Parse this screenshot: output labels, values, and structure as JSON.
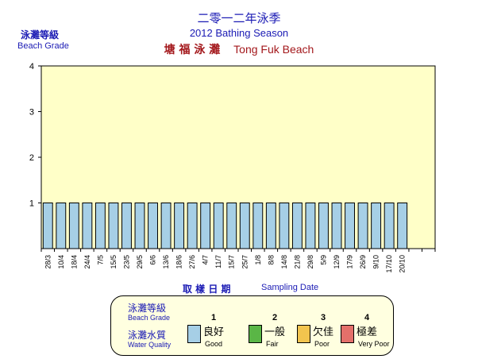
{
  "titles": {
    "chinese_title": "二零一二年泳季",
    "english_title": "2012 Bathing Season",
    "beach_chinese": "塘 福 泳 灘",
    "beach_english": "Tong Fuk Beach"
  },
  "y_axis_title": {
    "chinese": "泳灘等級",
    "english": "Beach Grade"
  },
  "x_axis_title": {
    "chinese": "取 樣 日 期",
    "english": "Sampling Date"
  },
  "legend": {
    "grade_label_chinese": "泳灘等級",
    "grade_label_english": "Beach Grade",
    "quality_label_chinese": "泳灘水質",
    "quality_label_english": "Water Quality",
    "items": [
      {
        "grade": "1",
        "chinese": "良好",
        "english": "Good",
        "color": "#a6cfe6"
      },
      {
        "grade": "2",
        "chinese": "一般",
        "english": "Fair",
        "color": "#5ab646"
      },
      {
        "grade": "3",
        "chinese": "欠佳",
        "english": "Poor",
        "color": "#f2c44e"
      },
      {
        "grade": "4",
        "chinese": "極差",
        "english": "Very Poor",
        "color": "#e4706a"
      }
    ]
  },
  "colors": {
    "plot_background": "#ffffc8",
    "bar_fill": "#a6cfe6",
    "title_blue": "#1a1ab4",
    "title_red": "#a3171b"
  },
  "chart_data": {
    "type": "bar",
    "ylim": [
      0,
      4
    ],
    "y_ticks": [
      "1",
      "2",
      "3",
      "4"
    ],
    "total_slots": 30,
    "categories": [
      "28/3",
      "10/4",
      "18/4",
      "24/4",
      "7/5",
      "15/5",
      "23/5",
      "29/5",
      "6/6",
      "13/6",
      "18/6",
      "27/6",
      "4/7",
      "11/7",
      "15/7",
      "25/7",
      "1/8",
      "8/8",
      "14/8",
      "21/8",
      "29/8",
      "5/9",
      "12/9",
      "17/9",
      "26/9",
      "9/10",
      "17/10",
      "20/10"
    ],
    "values": [
      1,
      1,
      1,
      1,
      1,
      1,
      1,
      1,
      1,
      1,
      1,
      1,
      1,
      1,
      1,
      1,
      1,
      1,
      1,
      1,
      1,
      1,
      1,
      1,
      1,
      1,
      1,
      1
    ]
  }
}
